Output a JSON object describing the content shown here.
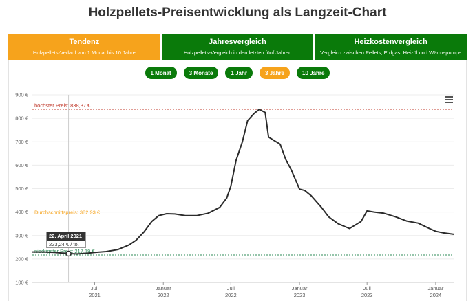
{
  "page": {
    "title": "Holzpellets-Preisentwicklung als Langzeit-Chart"
  },
  "tabs": [
    {
      "title": "Tendenz",
      "subtitle": "Holzpellets-Verlauf von 1 Monat bis 10 Jahre",
      "active": true
    },
    {
      "title": "Jahresvergleich",
      "subtitle": "Holzpellets-Vergleich in den letzten fünf Jahren",
      "active": false
    },
    {
      "title": "Heizkostenvergleich",
      "subtitle": "Vergleich zwischen Pellets, Erdgas, Heizöl und Wärmepumpe",
      "active": false
    }
  ],
  "ranges": [
    {
      "label": "1 Monat",
      "active": false
    },
    {
      "label": "3 Monate",
      "active": false
    },
    {
      "label": "1 Jahr",
      "active": false
    },
    {
      "label": "3 Jahre",
      "active": true
    },
    {
      "label": "10 Jahre",
      "active": false
    }
  ],
  "colors": {
    "green": "#0a7a0a",
    "orange": "#f6a31c",
    "red": "#c0392b",
    "line": "#2b2b2b"
  },
  "icons": {
    "menu": "hamburger-menu-icon"
  },
  "tooltip": {
    "date": "22. April 2021",
    "value": "223,24 € / to."
  },
  "chart_data": {
    "type": "line",
    "title": "",
    "xlabel": "",
    "ylabel": "",
    "ylim": [
      100,
      900
    ],
    "yticks": [
      100,
      200,
      300,
      400,
      500,
      600,
      700,
      800,
      900
    ],
    "ytick_labels": [
      "100 €",
      "200 €",
      "300 €",
      "400 €",
      "500 €",
      "600 €",
      "700 €",
      "800 €",
      "900 €"
    ],
    "xlim": [
      "2021-01-15",
      "2024-02-20"
    ],
    "xticks": [
      {
        "date": "2021-07-01",
        "label": "Juli",
        "year": "2021"
      },
      {
        "date": "2022-01-01",
        "label": "Januar",
        "year": "2022"
      },
      {
        "date": "2022-07-01",
        "label": "Juli",
        "year": "2022"
      },
      {
        "date": "2023-01-01",
        "label": "Januar",
        "year": "2023"
      },
      {
        "date": "2023-07-01",
        "label": "Juli",
        "year": "2023"
      },
      {
        "date": "2024-01-01",
        "label": "Januar",
        "year": "2024"
      }
    ],
    "grid": true,
    "reference_lines": [
      {
        "label": "höchster Preis: 838,37 €",
        "value": 838.37,
        "color": "#c0392b"
      },
      {
        "label": "Durchschnittspreis: 382,93 €",
        "value": 382.93,
        "color": "#f6a31c"
      },
      {
        "label": "niedrigster Preis: 217,19 €",
        "value": 217.19,
        "color": "#2e8b57"
      }
    ],
    "crosshair_date": "2021-04-22",
    "series": [
      {
        "values": [
          [
            "2021-01-15",
            230
          ],
          [
            "2021-02-15",
            230
          ],
          [
            "2021-03-15",
            228
          ],
          [
            "2021-04-22",
            223
          ],
          [
            "2021-05-15",
            222
          ],
          [
            "2021-06-15",
            225
          ],
          [
            "2021-07-01",
            228
          ],
          [
            "2021-08-01",
            232
          ],
          [
            "2021-09-01",
            240
          ],
          [
            "2021-10-01",
            260
          ],
          [
            "2021-10-20",
            280
          ],
          [
            "2021-11-10",
            315
          ],
          [
            "2021-12-01",
            360
          ],
          [
            "2021-12-20",
            385
          ],
          [
            "2022-01-10",
            393
          ],
          [
            "2022-02-01",
            392
          ],
          [
            "2022-03-01",
            385
          ],
          [
            "2022-04-01",
            385
          ],
          [
            "2022-05-01",
            395
          ],
          [
            "2022-06-01",
            420
          ],
          [
            "2022-06-20",
            460
          ],
          [
            "2022-07-01",
            510
          ],
          [
            "2022-07-15",
            620
          ],
          [
            "2022-08-01",
            700
          ],
          [
            "2022-08-15",
            790
          ],
          [
            "2022-09-01",
            820
          ],
          [
            "2022-09-15",
            838
          ],
          [
            "2022-10-01",
            825
          ],
          [
            "2022-10-10",
            720
          ],
          [
            "2022-10-25",
            705
          ],
          [
            "2022-11-10",
            690
          ],
          [
            "2022-11-25",
            625
          ],
          [
            "2022-12-10",
            580
          ],
          [
            "2023-01-01",
            498
          ],
          [
            "2023-01-15",
            492
          ],
          [
            "2023-02-01",
            470
          ],
          [
            "2023-03-01",
            420
          ],
          [
            "2023-03-20",
            380
          ],
          [
            "2023-04-15",
            350
          ],
          [
            "2023-05-15",
            330
          ],
          [
            "2023-06-15",
            360
          ],
          [
            "2023-07-01",
            405
          ],
          [
            "2023-07-20",
            400
          ],
          [
            "2023-08-15",
            395
          ],
          [
            "2023-09-15",
            380
          ],
          [
            "2023-10-15",
            362
          ],
          [
            "2023-11-15",
            353
          ],
          [
            "2023-12-15",
            330
          ],
          [
            "2024-01-01",
            318
          ],
          [
            "2024-01-20",
            312
          ],
          [
            "2024-02-20",
            305
          ]
        ]
      }
    ]
  }
}
